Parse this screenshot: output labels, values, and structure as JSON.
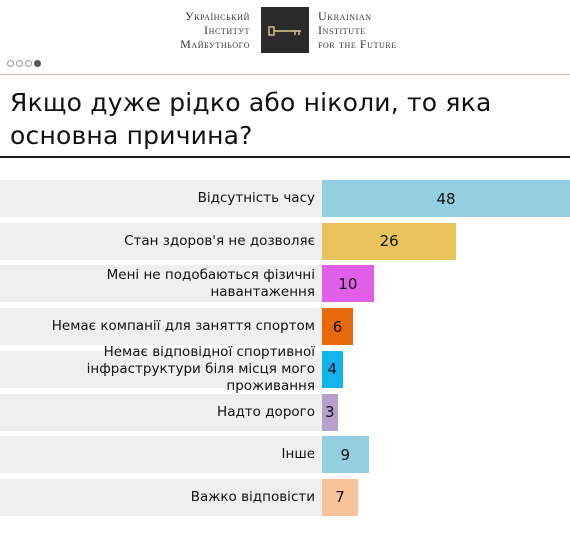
{
  "header": {
    "org_ua_lines": [
      "Український",
      "Інститут",
      "Майбутнього"
    ],
    "org_en_lines": [
      "Ukrainian",
      "Institute",
      "for the Future"
    ],
    "logo_icon": "key-icon",
    "progress_dots": 4,
    "active_dot": 4
  },
  "title": "Якщо дуже рідко або ніколи, то яка основна причина?",
  "chart_data": {
    "type": "bar",
    "orientation": "horizontal",
    "categories": [
      "Відсутність часу",
      "Стан здоров'я не дозволяє",
      "Мені не подобаються фізичні навантаження",
      "Немає компанії для заняття спортом",
      "Немає відповідної спортивної інфраструктури біля місця мого проживання",
      "Надто дорого",
      "Інше",
      "Важко відповісти"
    ],
    "category_lines": [
      [
        "Відсутність часу"
      ],
      [
        "Стан здоров'я не дозволяє"
      ],
      [
        "Мені не подобаються фізичні",
        "навантаження"
      ],
      [
        "Немає компанії для заняття спортом"
      ],
      [
        "Немає відповідної спортивної",
        "інфраструктури біля місця мого проживання"
      ],
      [
        "Надто дорого"
      ],
      [
        "Інше"
      ],
      [
        "Важко відповісти"
      ]
    ],
    "values": [
      48,
      26,
      10,
      6,
      4,
      3,
      9,
      7
    ],
    "colors": [
      "#94cfe0",
      "#e8c35c",
      "#e15ee8",
      "#e8690b",
      "#13b4ee",
      "#b5a0cc",
      "#94cfe0",
      "#f9c39a"
    ],
    "xlim": [
      0,
      48
    ],
    "grid": false,
    "legend": "none"
  }
}
